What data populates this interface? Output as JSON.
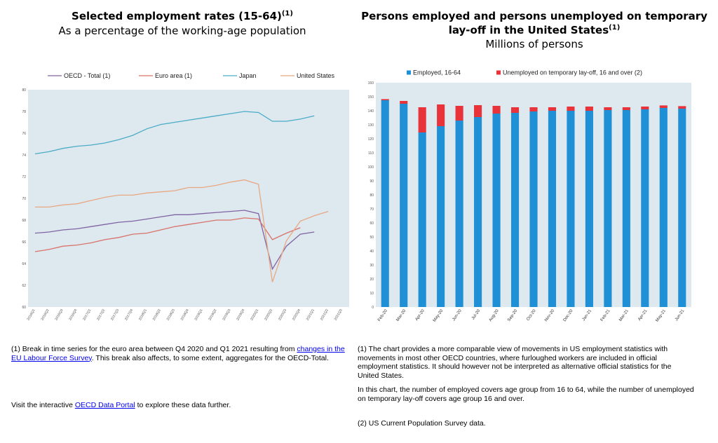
{
  "left": {
    "title": "Selected employment rates (15-64)",
    "title_sup": "(1)",
    "subtitle": "As a percentage of the working-age population",
    "footnote_prefix": "(1) Break in time series for the euro area between Q4 2020 and Q1 2021 resulting from",
    "footnote_link": "changes in the EU Labour Force Survey",
    "footnote_suffix": ". This break also affects, to some extent, aggregates for the OECD-Total.",
    "visit_prefix": "Visit the interactive",
    "visit_link": "OECD Data Portal",
    "visit_suffix": "to explore these data further."
  },
  "right": {
    "title_line1": "Persons employed and persons unemployed on temporary",
    "title_line2": "lay-off in the United States",
    "title_sup": "(1)",
    "subtitle": "Millions of persons",
    "note1": "(1) The chart provides a more comparable view of movements in US employment statistics with movements in most other OECD countries, where furloughed workers are included in official employment statistics. It should however not be interpreted as alternative official statistics for the United States.",
    "note2": "In this chart, the number of employed covers age group from 16 to 64, while the number of unemployed on temporary lay-off covers age group 16 and over.",
    "note3": "(2) US Current Population Survey data."
  },
  "chart_data": [
    {
      "type": "line",
      "colors": {
        "OECD - Total (1)": "#8064a2",
        "Euro area (1)": "#d9736a",
        "Japan": "#4bacc6",
        "United States": "#e8a882",
        "background": "#dde8ef"
      },
      "x": [
        "2016Q1",
        "2016Q2",
        "2016Q3",
        "2016Q4",
        "2017Q1",
        "2017Q2",
        "2017Q3",
        "2017Q4",
        "2018Q1",
        "2018Q2",
        "2018Q3",
        "2018Q4",
        "2019Q1",
        "2019Q2",
        "2019Q3",
        "2019Q4",
        "2020Q1",
        "2020Q2",
        "2020Q3",
        "2020Q4",
        "2021Q1",
        "2021Q2",
        "2021Q3"
      ],
      "ylim": [
        60,
        80
      ],
      "yticks": [
        60,
        62,
        64,
        66,
        68,
        70,
        72,
        74,
        76,
        78,
        80
      ],
      "legend_position": "top",
      "series": [
        {
          "name": "OECD - Total (1)",
          "values": [
            66.8,
            66.9,
            67.1,
            67.2,
            67.4,
            67.6,
            67.8,
            67.9,
            68.1,
            68.3,
            68.5,
            68.5,
            68.6,
            68.7,
            68.8,
            68.9,
            68.6,
            63.5,
            65.6,
            66.7,
            66.9,
            null,
            null
          ]
        },
        {
          "name": "Euro area (1)",
          "values": [
            65.1,
            65.3,
            65.6,
            65.7,
            65.9,
            66.2,
            66.4,
            66.7,
            66.8,
            67.1,
            67.4,
            67.6,
            67.8,
            68.0,
            68.0,
            68.2,
            68.1,
            66.2,
            66.8,
            67.3,
            null,
            null,
            null
          ]
        },
        {
          "name": "Japan",
          "values": [
            74.1,
            74.3,
            74.6,
            74.8,
            74.9,
            75.1,
            75.4,
            75.8,
            76.4,
            76.8,
            77.0,
            77.2,
            77.4,
            77.6,
            77.8,
            78.0,
            77.9,
            77.1,
            77.1,
            77.3,
            77.6,
            null,
            null
          ]
        },
        {
          "name": "United States",
          "values": [
            69.2,
            69.2,
            69.4,
            69.5,
            69.8,
            70.1,
            70.3,
            70.3,
            70.5,
            70.6,
            70.7,
            71.0,
            71.0,
            71.2,
            71.5,
            71.7,
            71.3,
            62.3,
            66.1,
            67.9,
            68.4,
            68.8,
            null
          ]
        }
      ]
    },
    {
      "type": "bar",
      "stacked": true,
      "categories": [
        "Feb-20",
        "Mar-20",
        "Apr-20",
        "May-20",
        "Jun-20",
        "Jul-20",
        "Aug-20",
        "Sep-20",
        "Oct-20",
        "Nov-20",
        "Dec-20",
        "Jan-21",
        "Feb-21",
        "Mar-21",
        "Apr-21",
        "May-21",
        "Jun-21"
      ],
      "ylim": [
        0,
        160
      ],
      "yticks": [
        0,
        10,
        20,
        30,
        40,
        50,
        60,
        70,
        80,
        90,
        100,
        110,
        120,
        130,
        140,
        150,
        160
      ],
      "legend_position": "top",
      "colors": {
        "Employed, 16-64": "#1f8fd6",
        "Unemployed on temporary lay-off, 16 and over (2)": "#e8333a",
        "background": "#dde8ef"
      },
      "series": [
        {
          "name": "Employed, 16-64",
          "values": [
            147.5,
            145.0,
            124.5,
            129.0,
            133.0,
            135.5,
            138.0,
            138.5,
            139.5,
            140.0,
            140.0,
            140.0,
            140.5,
            140.5,
            141.0,
            142.0,
            141.5
          ]
        },
        {
          "name": "Unemployed on temporary lay-off, 16 and over (2)",
          "values": [
            0.8,
            2.0,
            18.0,
            15.5,
            10.5,
            8.5,
            5.5,
            4.0,
            3.0,
            2.5,
            3.0,
            3.0,
            2.0,
            2.0,
            2.0,
            1.8,
            1.8
          ]
        }
      ]
    }
  ]
}
